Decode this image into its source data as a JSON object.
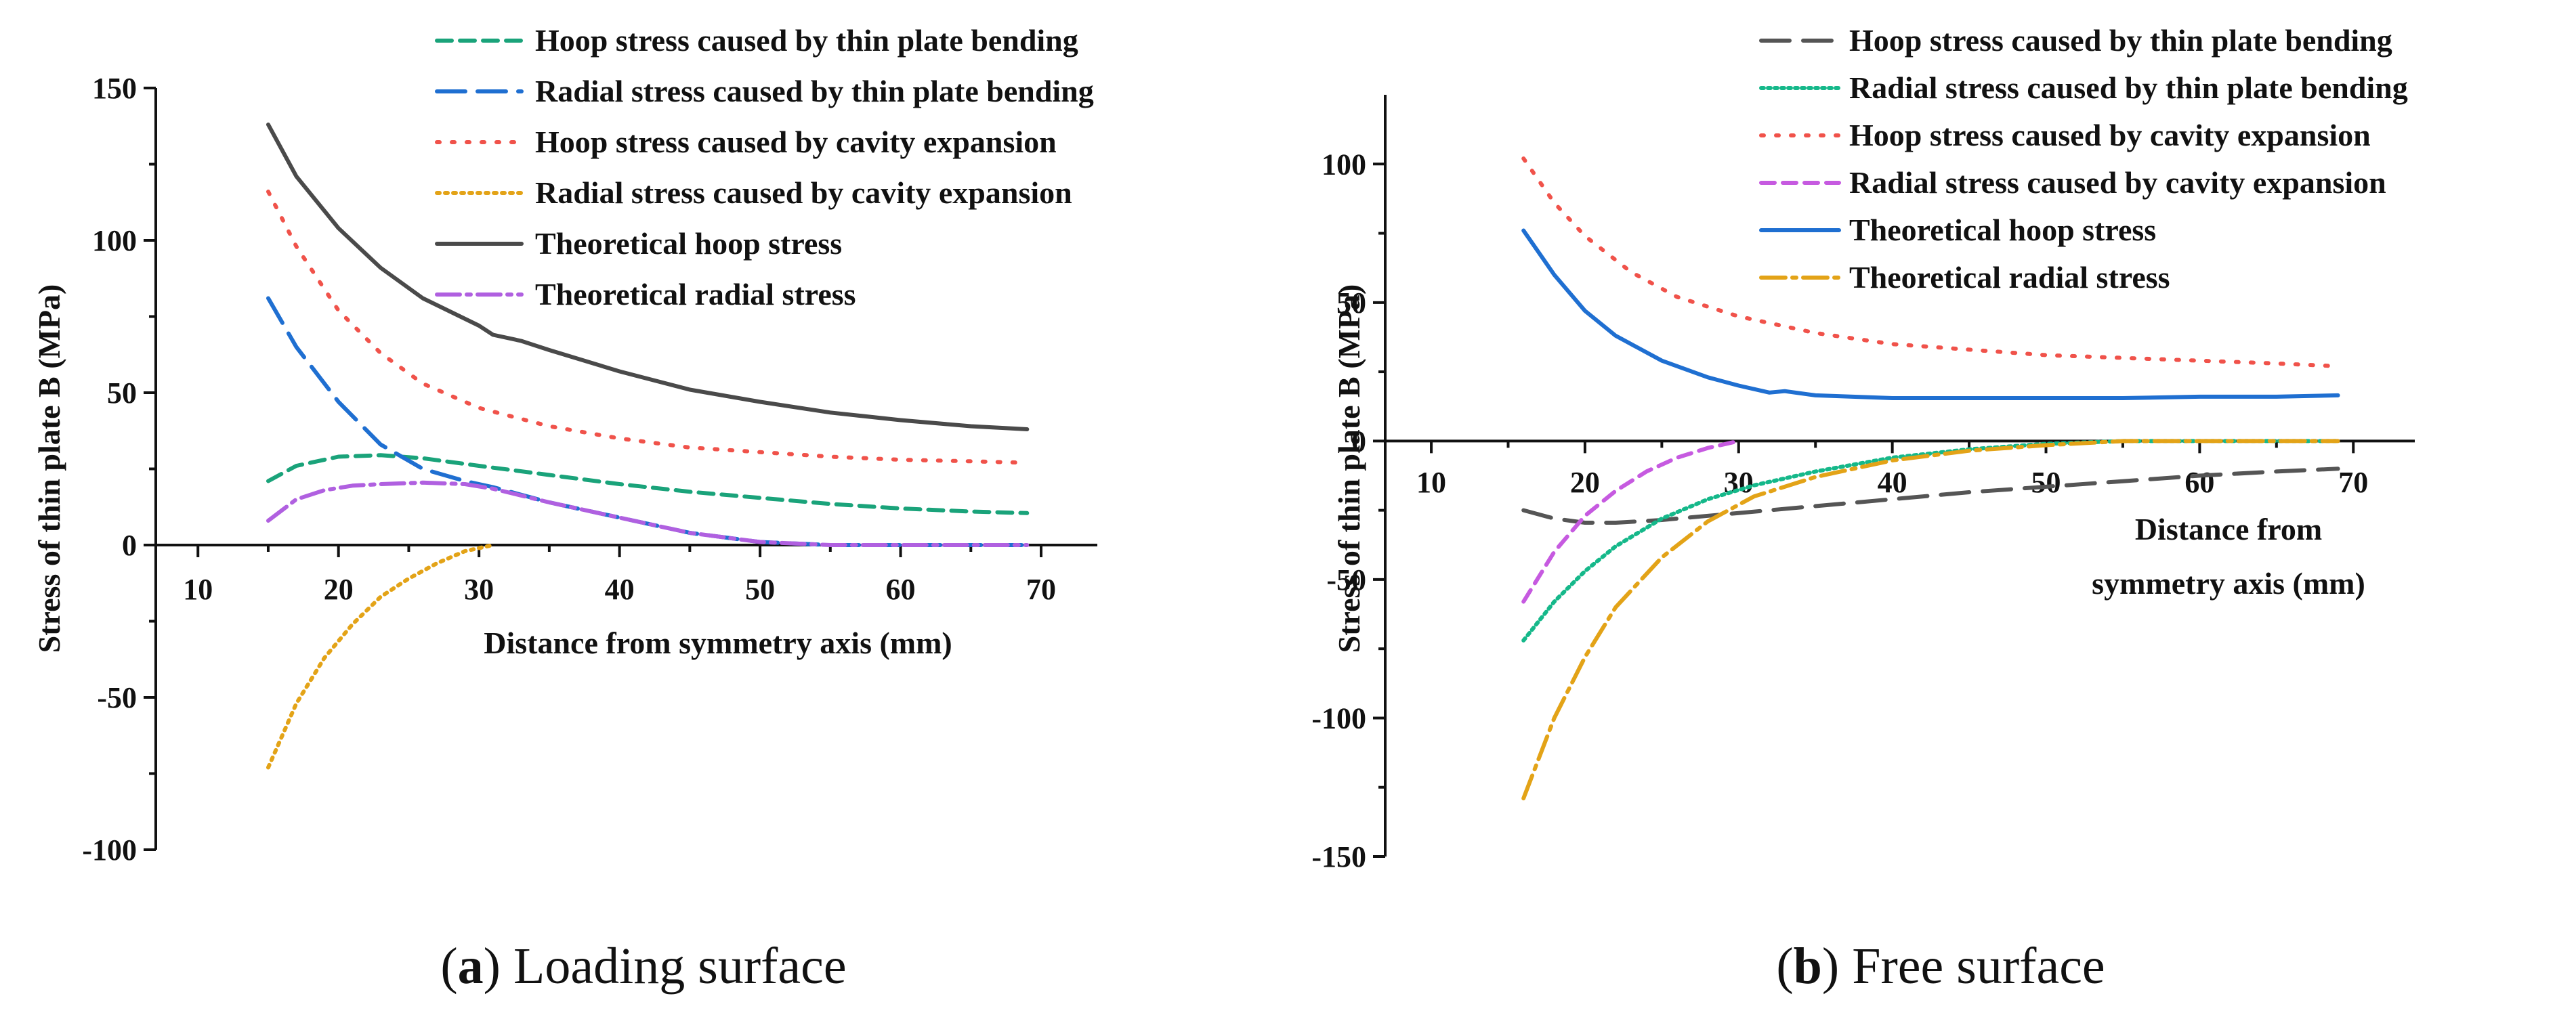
{
  "chart_data": [
    {
      "type": "line",
      "panel": "a",
      "caption_letter": "a",
      "caption_text": "Loading surface",
      "xlabel": "Distance from symmetry axis (mm)",
      "ylabel": "Stress of thin plate B (MPa)",
      "xlim": [
        7,
        74
      ],
      "ylim": [
        -100,
        150
      ],
      "xticks": [
        10,
        20,
        30,
        40,
        50,
        60,
        70
      ],
      "yticks": [
        -100,
        -50,
        0,
        50,
        100,
        150
      ],
      "legend_position": "top-right",
      "series": [
        {
          "name": "Hoop stress caused by thin plate bending",
          "color": "#1aa37a",
          "dash": "22 12",
          "x": [
            15,
            17,
            20,
            23,
            26,
            30,
            35,
            40,
            45,
            50,
            55,
            60,
            65,
            69
          ],
          "y": [
            21,
            26,
            29,
            29.5,
            28.5,
            26,
            23,
            20,
            17.5,
            15.5,
            13.5,
            12,
            11,
            10.5
          ]
        },
        {
          "name": "Radial stress caused by thin plate bending",
          "color": "#1f6fd1",
          "dash": "42 18",
          "x": [
            15,
            17,
            20,
            23,
            26,
            29,
            31,
            35,
            40,
            45,
            50,
            55,
            60,
            65,
            69
          ],
          "y": [
            81,
            65,
            47,
            33,
            25,
            21,
            19,
            14,
            9,
            4,
            1,
            0,
            0,
            0,
            0
          ]
        },
        {
          "name": "Hoop stress caused by cavity expansion",
          "color": "#f0524a",
          "dash": "4 18",
          "x": [
            15,
            17,
            20,
            23,
            26,
            30,
            35,
            40,
            45,
            50,
            55,
            60,
            65,
            69
          ],
          "y": [
            116,
            98,
            77,
            63,
            53,
            45,
            39,
            35,
            32,
            30.5,
            29,
            28,
            27.5,
            27
          ]
        },
        {
          "name": "Radial stress caused by cavity expansion",
          "color": "#e3a317",
          "dash": "4 8",
          "x": [
            15,
            17,
            19,
            21,
            23,
            25,
            27,
            29,
            31
          ],
          "y": [
            -73,
            -52,
            -37,
            -26,
            -17,
            -11,
            -6,
            -2,
            0
          ]
        },
        {
          "name": "Theoretical hoop stress",
          "color": "#4a4a4a",
          "dash": "",
          "x": [
            15,
            17,
            20,
            23,
            26,
            30,
            31,
            33,
            35,
            40,
            45,
            50,
            55,
            60,
            65,
            69
          ],
          "y": [
            138,
            121,
            104,
            91,
            81,
            72,
            69,
            67,
            64,
            57,
            51,
            47,
            43.5,
            41,
            39,
            38
          ]
        },
        {
          "name": "Theoretical radial stress",
          "color": "#b060e0",
          "dash": "34 10 6 10",
          "x": [
            15,
            17,
            19,
            21,
            23,
            26,
            29,
            31,
            35,
            40,
            45,
            50,
            55,
            60,
            65,
            69
          ],
          "y": [
            8,
            15,
            18,
            19.5,
            20,
            20.5,
            20,
            18.5,
            14,
            9,
            4,
            1,
            0,
            0,
            0,
            0
          ]
        }
      ]
    },
    {
      "type": "line",
      "panel": "b",
      "caption_letter": "b",
      "caption_text": "Free surface",
      "xlabel_lines": [
        "Distance from",
        "symmetry axis (mm)"
      ],
      "ylabel": "Stress of thin plate B (MPa)",
      "xlim": [
        7,
        74
      ],
      "ylim": [
        -150,
        125
      ],
      "xticks": [
        10,
        20,
        30,
        40,
        50,
        60,
        70
      ],
      "yticks": [
        -150,
        -100,
        -50,
        0,
        50,
        100
      ],
      "legend_position": "top-right",
      "series": [
        {
          "name": "Hoop stress caused by thin plate bending",
          "color": "#555555",
          "dash": "42 20",
          "x": [
            16,
            18,
            20,
            22,
            25,
            30,
            35,
            40,
            45,
            50,
            55,
            60,
            65,
            69
          ],
          "y": [
            -25,
            -28,
            -29.5,
            -29.5,
            -28.5,
            -26,
            -23.5,
            -21,
            -18.5,
            -16.5,
            -14.5,
            -12.5,
            -11,
            -10
          ]
        },
        {
          "name": "Radial stress caused by thin plate bending",
          "color": "#15b88a",
          "dash": "4 6",
          "x": [
            16,
            18,
            20,
            22,
            25,
            28,
            31,
            35,
            40,
            45,
            50,
            55,
            60,
            65,
            69
          ],
          "y": [
            -72,
            -58,
            -47,
            -38,
            -28,
            -21,
            -16,
            -11,
            -6,
            -3,
            -1,
            0,
            0,
            0,
            0
          ]
        },
        {
          "name": "Hoop stress caused by cavity expansion",
          "color": "#f0524a",
          "dash": "4 18",
          "x": [
            16,
            18,
            20,
            23,
            26,
            30,
            35,
            40,
            45,
            50,
            55,
            60,
            65,
            69
          ],
          "y": [
            102,
            86,
            74,
            61,
            52,
            45,
            39,
            35,
            33,
            31,
            30,
            29,
            28,
            27
          ]
        },
        {
          "name": "Radial stress caused by cavity expansion",
          "color": "#c65ae0",
          "dash": "20 12",
          "x": [
            16,
            18,
            20,
            22,
            24,
            26,
            28,
            30
          ],
          "y": [
            -58,
            -40,
            -27,
            -18,
            -11,
            -6,
            -2.5,
            0
          ]
        },
        {
          "name": "Theoretical hoop stress",
          "color": "#1f6fd1",
          "dash": "",
          "x": [
            16,
            17,
            18,
            20,
            22,
            25,
            28,
            30,
            32,
            33,
            35,
            40,
            45,
            50,
            55,
            60,
            65,
            69
          ],
          "y": [
            76,
            68,
            60,
            47,
            38,
            29,
            23,
            20,
            17.5,
            18,
            16.5,
            15.5,
            15.5,
            15.5,
            15.5,
            16,
            16,
            16.5
          ]
        },
        {
          "name": "Theoretical radial stress",
          "color": "#e3a317",
          "dash": "36 10 6 10",
          "x": [
            16,
            18,
            20,
            22,
            25,
            28,
            31,
            35,
            40,
            45,
            50,
            55,
            60,
            65,
            69
          ],
          "y": [
            -129,
            -100,
            -78,
            -60,
            -42,
            -29,
            -20,
            -13,
            -7,
            -3.5,
            -1.5,
            0,
            0,
            0,
            0
          ]
        }
      ]
    }
  ]
}
